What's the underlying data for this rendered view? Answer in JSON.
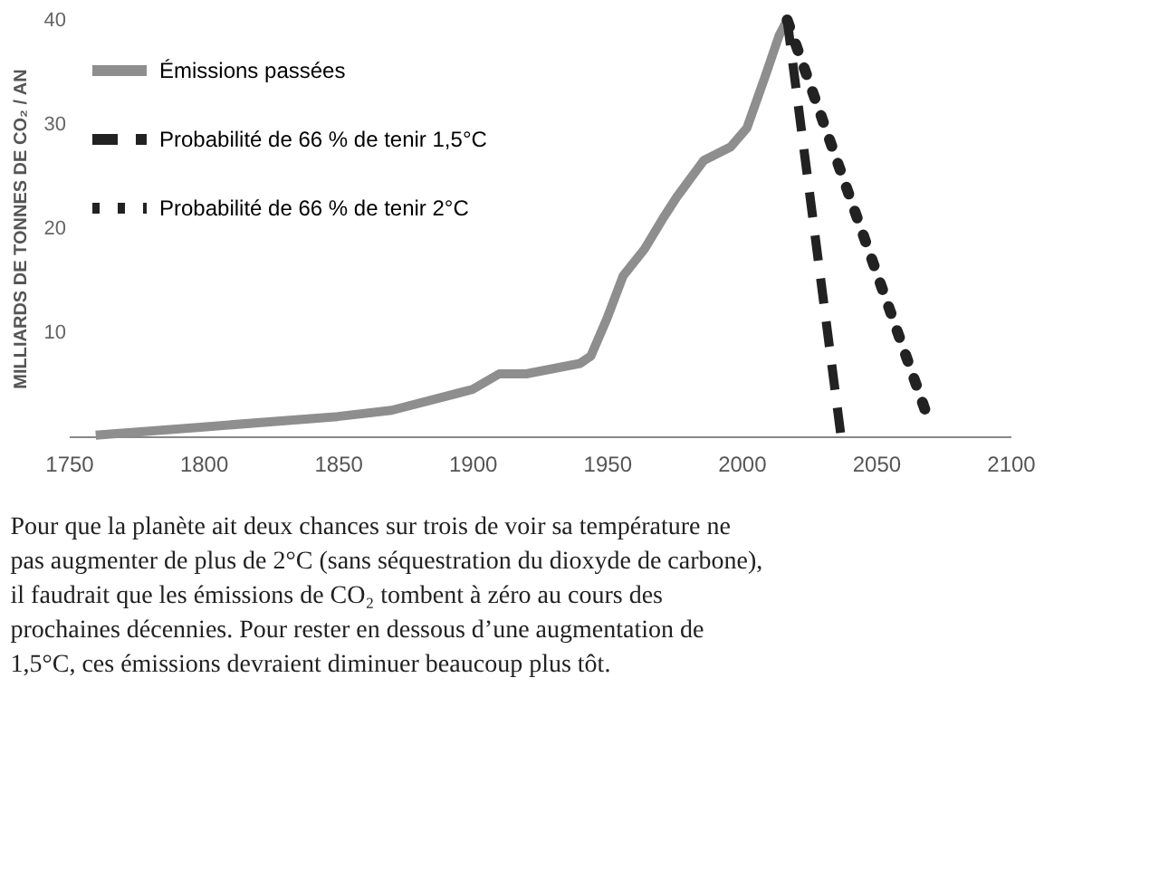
{
  "chart_data": {
    "type": "line",
    "ylabel": "MILLIARDS DE TONNES DE CO₂ / AN",
    "xlim": [
      1750,
      2100
    ],
    "xticks": [
      1750,
      1800,
      1850,
      1900,
      1950,
      2000,
      2050,
      2100
    ],
    "ylim": [
      0,
      40
    ],
    "yticks": [
      10,
      20,
      30,
      40
    ],
    "grid": false,
    "legend": "top left",
    "marker": "none",
    "series": [
      {
        "name": "Émissions passées",
        "color": "#8e8e8e",
        "line_style": "solid",
        "x": [
          1760,
          1800,
          1850,
          1870,
          1900,
          1910,
          1920,
          1930,
          1940,
          1944,
          1950,
          1956,
          1964,
          1971,
          1976,
          1986,
          1996,
          2002,
          2009,
          2014,
          2017
        ],
        "values": [
          0.1,
          0.9,
          1.9,
          2.5,
          4.5,
          6,
          6,
          6.5,
          7,
          7.7,
          11.3,
          15.4,
          18,
          21,
          23,
          26.5,
          27.8,
          29.6,
          34.7,
          38.5,
          40
        ]
      },
      {
        "name": "Probabilité de 66 % de tenir 1,5°C",
        "color": "#222222",
        "line_style": "dashed",
        "x": [
          2017,
          2037
        ],
        "values": [
          40,
          0
        ]
      },
      {
        "name": "Probabilité de 66 % de tenir 2°C",
        "color": "#222222",
        "line_style": "dotted",
        "x": [
          2017,
          2069
        ],
        "values": [
          40,
          2
        ]
      }
    ],
    "annotations": [
      "Pour que la planète ait deux chances sur trois de voir sa température ne pas augmenter de plus de 2°C (sans séquestration du dioxyde de carbone), il faudrait que les émissions de CO₂ tombent à zéro au cours des prochaines décennies. Pour rester en dessous d’une augmentation de 1,5°C, ces émissions devraient diminuer beaucoup plus tôt."
    ]
  }
}
